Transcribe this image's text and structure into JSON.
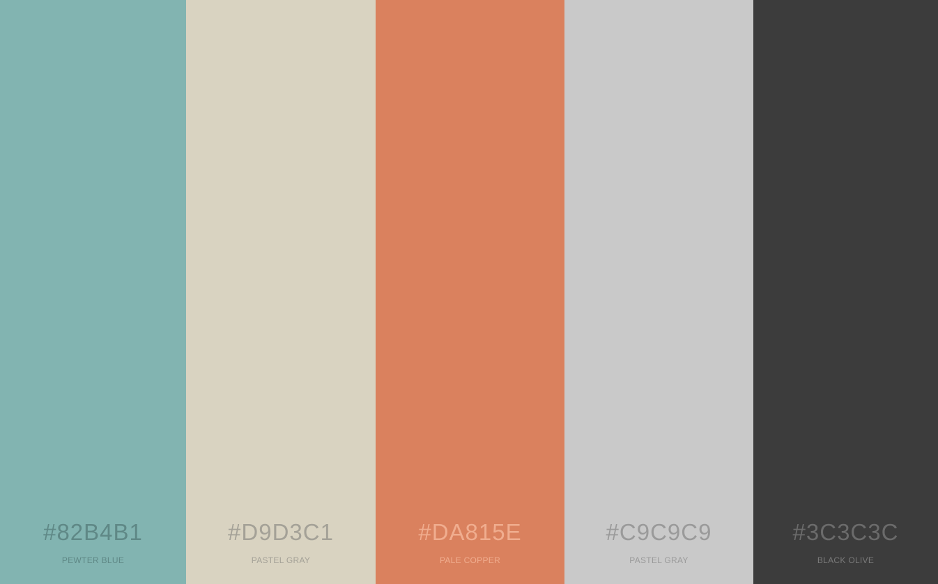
{
  "swatches": [
    {
      "hex": "#82B4B1",
      "name": "PEWTER BLUE",
      "color": "#82B4B1",
      "text_color": "#5f8886",
      "name_color": "#5f8886"
    },
    {
      "hex": "#D9D3C1",
      "name": "PASTEL GRAY",
      "color": "#D9D3C1",
      "text_color": "#a4a197",
      "name_color": "#a4a197"
    },
    {
      "hex": "#DA815E",
      "name": "PALE COPPER",
      "color": "#DA815E",
      "text_color": "#f0ad8f",
      "name_color": "#f0ad8f"
    },
    {
      "hex": "#C9C9C9",
      "name": "PASTEL GRAY",
      "color": "#C9C9C9",
      "text_color": "#9a9a9a",
      "name_color": "#9a9a9a"
    },
    {
      "hex": "#3C3C3C",
      "name": "BLACK OLIVE",
      "color": "#3C3C3C",
      "text_color": "#6b6b6b",
      "name_color": "#7a7a7a"
    }
  ]
}
